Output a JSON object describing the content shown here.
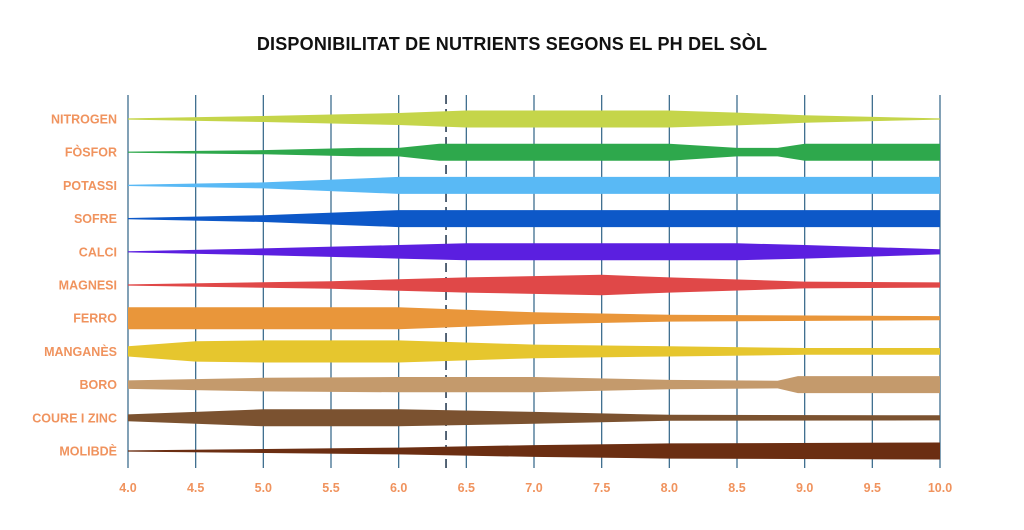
{
  "chart_data": {
    "type": "area",
    "title": "DISPONIBILITAT DE NUTRIENTS SEGONS EL PH DEL SÒL",
    "x_ticks": [
      "4.0",
      "4.5",
      "5.0",
      "5.5",
      "6.0",
      "6.5",
      "7.0",
      "7.5",
      "8.0",
      "8.5",
      "9.0",
      "9.5",
      "10.0"
    ],
    "xlim": [
      4.0,
      10.0
    ],
    "dashed_reference_x": 6.35,
    "label_color": "#F0935E",
    "grid_color": "#3E6E8E",
    "series": [
      {
        "name": "NITROGEN",
        "color": "#C5D54A",
        "x": [
          4.0,
          5.0,
          6.0,
          6.5,
          8.0,
          8.5,
          9.0,
          10.0
        ],
        "width": [
          0.05,
          0.35,
          0.7,
          1.0,
          1.0,
          0.75,
          0.45,
          0.05
        ]
      },
      {
        "name": "FÒSFOR",
        "color": "#2EA84C",
        "x": [
          4.0,
          5.0,
          5.7,
          6.0,
          6.3,
          6.5,
          8.0,
          8.5,
          8.8,
          9.0,
          10.0
        ],
        "width": [
          0.05,
          0.25,
          0.5,
          0.5,
          1.0,
          1.0,
          1.0,
          0.5,
          0.5,
          1.0,
          1.0
        ]
      },
      {
        "name": "POTASSI",
        "color": "#59B9F5",
        "x": [
          4.0,
          5.0,
          6.0,
          10.0
        ],
        "width": [
          0.05,
          0.35,
          1.0,
          1.0
        ]
      },
      {
        "name": "SOFRE",
        "color": "#0D58C8",
        "x": [
          4.0,
          5.0,
          6.0,
          10.0
        ],
        "width": [
          0.05,
          0.4,
          1.0,
          1.0
        ]
      },
      {
        "name": "CALCI",
        "color": "#5B1FE0",
        "x": [
          4.0,
          5.0,
          6.0,
          6.5,
          8.5,
          9.0,
          10.0
        ],
        "width": [
          0.05,
          0.4,
          0.8,
          1.0,
          1.0,
          0.8,
          0.3
        ]
      },
      {
        "name": "MAGNESI",
        "color": "#E04848",
        "x": [
          4.0,
          5.5,
          6.5,
          7.5,
          8.0,
          9.0,
          10.0
        ],
        "width": [
          0.05,
          0.45,
          0.9,
          1.2,
          0.9,
          0.4,
          0.3
        ]
      },
      {
        "name": "FERRO",
        "color": "#E9963A",
        "x": [
          4.0,
          6.0,
          7.0,
          8.0,
          10.0
        ],
        "width": [
          1.3,
          1.3,
          0.7,
          0.4,
          0.25
        ]
      },
      {
        "name": "MANGANÈS",
        "color": "#E6C62E",
        "x": [
          4.0,
          4.5,
          5.0,
          6.0,
          7.0,
          8.0,
          9.0,
          10.0
        ],
        "width": [
          0.6,
          1.2,
          1.3,
          1.3,
          0.8,
          0.6,
          0.4,
          0.4
        ]
      },
      {
        "name": "BORO",
        "color": "#C49A6C",
        "x": [
          4.0,
          5.0,
          6.0,
          7.0,
          8.0,
          8.8,
          8.95,
          10.0
        ],
        "width": [
          0.5,
          0.8,
          0.9,
          0.9,
          0.55,
          0.45,
          1.0,
          1.0
        ]
      },
      {
        "name": "COURE I ZINC",
        "color": "#7B5230",
        "x": [
          4.0,
          4.5,
          5.0,
          6.0,
          7.0,
          8.0,
          10.0
        ],
        "width": [
          0.4,
          0.7,
          1.0,
          1.0,
          0.7,
          0.35,
          0.3
        ]
      },
      {
        "name": "MOLIBDÈ",
        "color": "#6B2E12",
        "x": [
          4.0,
          6.0,
          7.0,
          8.0,
          10.0
        ],
        "width": [
          0.05,
          0.4,
          0.7,
          0.9,
          1.0
        ]
      }
    ]
  }
}
